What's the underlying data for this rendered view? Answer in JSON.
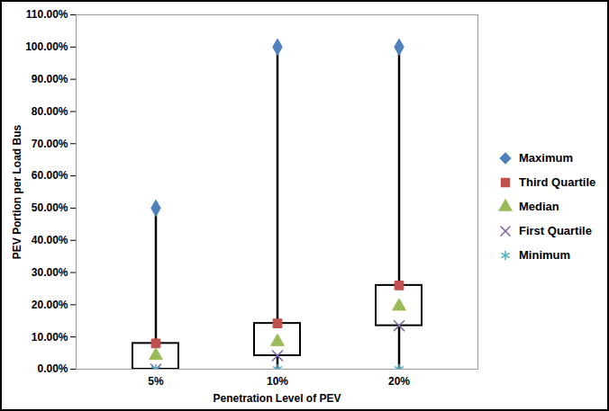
{
  "chart_data": {
    "type": "box",
    "x_label": "Penetration Level of PEV",
    "y_label": "PEV Portion per Load Bus",
    "categories": [
      "5%",
      "10%",
      "20%"
    ],
    "series": [
      {
        "name": "Maximum",
        "color": "#4f81bd",
        "marker": "diamond",
        "values": [
          50,
          100,
          100
        ]
      },
      {
        "name": "Third Quartile",
        "color": "#c0504d",
        "marker": "square",
        "values": [
          8,
          14.2,
          26
        ]
      },
      {
        "name": "Median",
        "color": "#9bbb59",
        "marker": "triangle",
        "values": [
          4.2,
          8.5,
          19.5
        ]
      },
      {
        "name": "First Quartile",
        "color": "#8064a2",
        "marker": "times",
        "values": [
          0,
          4.2,
          13.5
        ]
      },
      {
        "name": "Minimum",
        "color": "#4bacc6",
        "marker": "asterisk",
        "values": [
          0,
          0,
          0
        ]
      }
    ],
    "ylim": [
      0,
      110
    ],
    "yticks": [
      {
        "value": 0,
        "label": "0.00%"
      },
      {
        "value": 10,
        "label": "10.00%"
      },
      {
        "value": 20,
        "label": "20.00%"
      },
      {
        "value": 30,
        "label": "30.00%"
      },
      {
        "value": 40,
        "label": "40.00%"
      },
      {
        "value": 50,
        "label": "50.00%"
      },
      {
        "value": 60,
        "label": "60.00%"
      },
      {
        "value": 70,
        "label": "70.00%"
      },
      {
        "value": 80,
        "label": "80.00%"
      },
      {
        "value": 90,
        "label": "90.00%"
      },
      {
        "value": 100,
        "label": "100.00%"
      },
      {
        "value": 110,
        "label": "110.00%"
      }
    ],
    "grid": false,
    "legend": "right"
  }
}
